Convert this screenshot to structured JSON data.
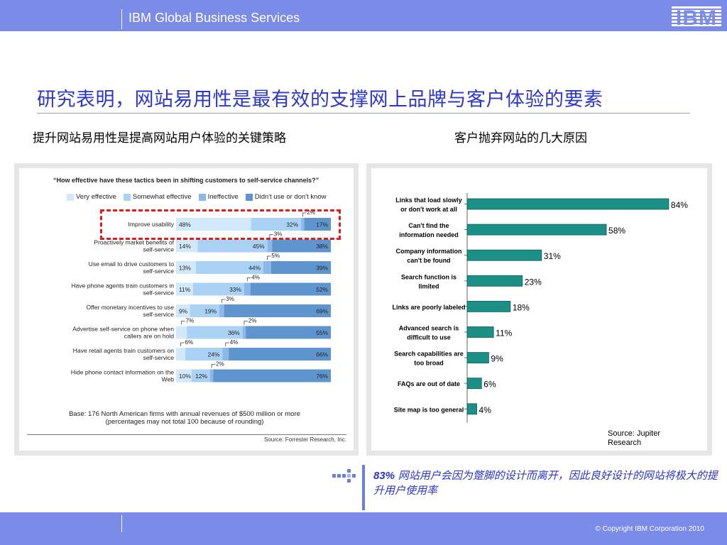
{
  "header": {
    "brand": "IBM Global Business Services",
    "logo_text": "IBM",
    "logo_icon": "ibm-striped-logo"
  },
  "title": "研究表明，网站易用性是最有效的支撑网上品牌与客户体验的要素",
  "left_heading": "提升网站易用性是提高网站用户体验的关键策略",
  "right_heading": "客户抛弃网站的几大原因",
  "left_figure": {
    "question": "“How effective have these tactics been in shifting customers to self-service channels?”",
    "base_line1": "Base: 176 North American firms with annual revenues of $500 million or more",
    "base_line2": "(percentages may not total 100 because of rounding)",
    "source": "Source: Forrester Research, Inc."
  },
  "right_figure": {
    "source": "Source:  Jupiter Research"
  },
  "colors": {
    "very": "#d2e8fb",
    "somewhat": "#a9d2f4",
    "ineffective": "#8cb7e6",
    "didnt": "#5f95cf",
    "teal": "#1c8f86",
    "accent_blue": "#2c37c8",
    "bar_blue": "#7b8ce8"
  },
  "chart_data": [
    {
      "type": "bar",
      "stacked": true,
      "orientation": "horizontal",
      "title": "“How effective have these tactics been in shifting customers to self-service channels?”",
      "categories": [
        "Improve usability",
        "Proactively market benefits of self-service",
        "Use email to drive customers to self-service",
        "Have phone agents train customers in self-service",
        "Offer monetary incentives to use self-service",
        "Advertise self-service on phone when callers are on hold",
        "Have retail agents train customers on self-service",
        "Hide phone contact information on the Web"
      ],
      "series": [
        {
          "name": "Very effective",
          "values": [
            48,
            14,
            13,
            11,
            9,
            7,
            6,
            10
          ]
        },
        {
          "name": "Somewhat effective",
          "values": [
            32,
            45,
            44,
            33,
            19,
            36,
            24,
            12
          ]
        },
        {
          "name": "Ineffective",
          "values": [
            2,
            3,
            5,
            4,
            3,
            2,
            4,
            2
          ]
        },
        {
          "name": "Didn't use or don't know",
          "values": [
            17,
            38,
            39,
            52,
            69,
            55,
            66,
            76
          ]
        }
      ],
      "legend": "top"
    },
    {
      "type": "bar",
      "orientation": "horizontal",
      "categories": [
        "Links that load slowly or don't work at all",
        "Can't find the information needed",
        "Company information can't be found",
        "Search function is limited",
        "Links are poorly labeled",
        "Advanced search is difficult to use",
        "Search capabilities are too broad",
        "FAQs are out of date",
        "Site map is too general"
      ],
      "values": [
        84,
        58,
        31,
        23,
        18,
        11,
        9,
        6,
        4
      ],
      "value_labels": [
        "84%",
        "58%",
        "31%",
        "23%",
        "18%",
        "11%",
        "9%",
        "6%",
        "4%"
      ],
      "xlim": [
        0,
        100
      ]
    }
  ],
  "note": {
    "highlight": "83%",
    "text": " 网站用户会因为蹩脚的设计而离开，因此良好设计的网站将极大的提升用户使用率"
  },
  "footer": {
    "copyright": "© Copyright IBM Corporation 2010"
  }
}
